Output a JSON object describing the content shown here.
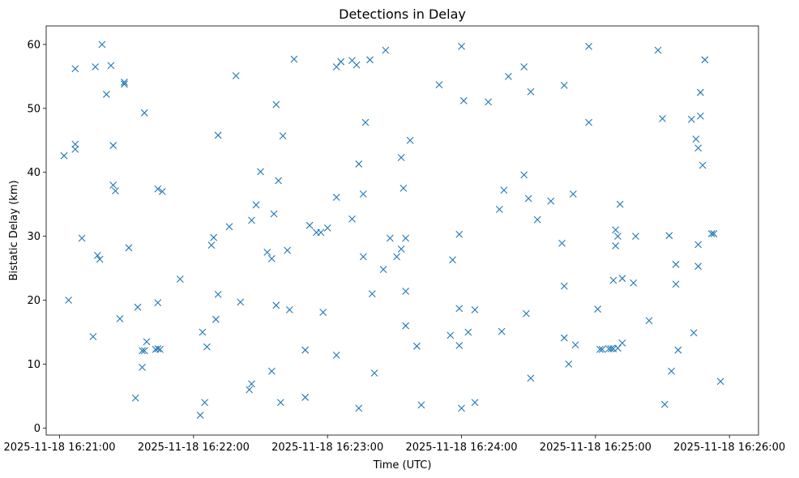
{
  "chart_data": {
    "type": "scatter",
    "title": "Detections in Delay",
    "xlabel": "Time (UTC)",
    "ylabel": "Bistatic Delay (km)",
    "marker": "x",
    "color": "#1f77b4",
    "grid": false,
    "xlim": [
      "2025-11-18 16:20:54",
      "2025-11-18 16:26:13"
    ],
    "ylim": [
      -1.1,
      62.9
    ],
    "x_ticks": [
      "2025-11-18 16:21:00",
      "2025-11-18 16:22:00",
      "2025-11-18 16:23:00",
      "2025-11-18 16:24:00",
      "2025-11-18 16:25:00",
      "2025-11-18 16:26:00"
    ],
    "y_ticks": [
      0,
      10,
      20,
      30,
      40,
      50,
      60
    ],
    "points": [
      {
        "x": "2025-11-18 16:21:02",
        "y": 42.6
      },
      {
        "x": "2025-11-18 16:21:04",
        "y": 20.0
      },
      {
        "x": "2025-11-18 16:21:07",
        "y": 56.2
      },
      {
        "x": "2025-11-18 16:21:07",
        "y": 44.4
      },
      {
        "x": "2025-11-18 16:21:07",
        "y": 43.6
      },
      {
        "x": "2025-11-18 16:21:10",
        "y": 29.7
      },
      {
        "x": "2025-11-18 16:21:15",
        "y": 14.3
      },
      {
        "x": "2025-11-18 16:21:16",
        "y": 56.5
      },
      {
        "x": "2025-11-18 16:21:17",
        "y": 27.0
      },
      {
        "x": "2025-11-18 16:21:18",
        "y": 26.4
      },
      {
        "x": "2025-11-18 16:21:19",
        "y": 60.0
      },
      {
        "x": "2025-11-18 16:21:21",
        "y": 52.2
      },
      {
        "x": "2025-11-18 16:21:23",
        "y": 56.7
      },
      {
        "x": "2025-11-18 16:21:24",
        "y": 44.2
      },
      {
        "x": "2025-11-18 16:21:24",
        "y": 38.0
      },
      {
        "x": "2025-11-18 16:21:25",
        "y": 37.1
      },
      {
        "x": "2025-11-18 16:21:27",
        "y": 17.1
      },
      {
        "x": "2025-11-18 16:21:29",
        "y": 54.1
      },
      {
        "x": "2025-11-18 16:21:29",
        "y": 53.8
      },
      {
        "x": "2025-11-18 16:21:31",
        "y": 28.2
      },
      {
        "x": "2025-11-18 16:21:34",
        "y": 4.7
      },
      {
        "x": "2025-11-18 16:21:35",
        "y": 18.9
      },
      {
        "x": "2025-11-18 16:21:37",
        "y": 9.5
      },
      {
        "x": "2025-11-18 16:21:37",
        "y": 12.1
      },
      {
        "x": "2025-11-18 16:21:38",
        "y": 49.3
      },
      {
        "x": "2025-11-18 16:21:38",
        "y": 12.1
      },
      {
        "x": "2025-11-18 16:21:39",
        "y": 13.5
      },
      {
        "x": "2025-11-18 16:21:43",
        "y": 12.3
      },
      {
        "x": "2025-11-18 16:21:44",
        "y": 19.6
      },
      {
        "x": "2025-11-18 16:21:44",
        "y": 37.4
      },
      {
        "x": "2025-11-18 16:21:44",
        "y": 12.4
      },
      {
        "x": "2025-11-18 16:21:45",
        "y": 12.3
      },
      {
        "x": "2025-11-18 16:21:46",
        "y": 37.0
      },
      {
        "x": "2025-11-18 16:21:54",
        "y": 23.3
      },
      {
        "x": "2025-11-18 16:22:03",
        "y": 2.0
      },
      {
        "x": "2025-11-18 16:22:04",
        "y": 15.0
      },
      {
        "x": "2025-11-18 16:22:05",
        "y": 4.0
      },
      {
        "x": "2025-11-18 16:22:06",
        "y": 12.7
      },
      {
        "x": "2025-11-18 16:22:08",
        "y": 28.6
      },
      {
        "x": "2025-11-18 16:22:09",
        "y": 29.8
      },
      {
        "x": "2025-11-18 16:22:10",
        "y": 17.0
      },
      {
        "x": "2025-11-18 16:22:11",
        "y": 20.9
      },
      {
        "x": "2025-11-18 16:22:11",
        "y": 45.8
      },
      {
        "x": "2025-11-18 16:22:16",
        "y": 31.5
      },
      {
        "x": "2025-11-18 16:22:19",
        "y": 55.1
      },
      {
        "x": "2025-11-18 16:22:21",
        "y": 19.7
      },
      {
        "x": "2025-11-18 16:22:25",
        "y": 6.0
      },
      {
        "x": "2025-11-18 16:22:26",
        "y": 6.9
      },
      {
        "x": "2025-11-18 16:22:26",
        "y": 32.5
      },
      {
        "x": "2025-11-18 16:22:28",
        "y": 34.9
      },
      {
        "x": "2025-11-18 16:22:30",
        "y": 40.1
      },
      {
        "x": "2025-11-18 16:22:33",
        "y": 27.5
      },
      {
        "x": "2025-11-18 16:22:35",
        "y": 26.5
      },
      {
        "x": "2025-11-18 16:22:35",
        "y": 8.9
      },
      {
        "x": "2025-11-18 16:22:36",
        "y": 33.5
      },
      {
        "x": "2025-11-18 16:22:37",
        "y": 19.2
      },
      {
        "x": "2025-11-18 16:22:37",
        "y": 50.6
      },
      {
        "x": "2025-11-18 16:22:38",
        "y": 38.7
      },
      {
        "x": "2025-11-18 16:22:39",
        "y": 4.0
      },
      {
        "x": "2025-11-18 16:22:40",
        "y": 45.7
      },
      {
        "x": "2025-11-18 16:22:42",
        "y": 27.8
      },
      {
        "x": "2025-11-18 16:22:43",
        "y": 18.5
      },
      {
        "x": "2025-11-18 16:22:45",
        "y": 57.7
      },
      {
        "x": "2025-11-18 16:22:50",
        "y": 12.2
      },
      {
        "x": "2025-11-18 16:22:50",
        "y": 4.8
      },
      {
        "x": "2025-11-18 16:22:52",
        "y": 31.7
      },
      {
        "x": "2025-11-18 16:22:55",
        "y": 30.6
      },
      {
        "x": "2025-11-18 16:22:57",
        "y": 30.6
      },
      {
        "x": "2025-11-18 16:22:58",
        "y": 18.1
      },
      {
        "x": "2025-11-18 16:23:00",
        "y": 31.3
      },
      {
        "x": "2025-11-18 16:23:04",
        "y": 56.5
      },
      {
        "x": "2025-11-18 16:23:04",
        "y": 36.1
      },
      {
        "x": "2025-11-18 16:23:04",
        "y": 11.4
      },
      {
        "x": "2025-11-18 16:23:06",
        "y": 57.3
      },
      {
        "x": "2025-11-18 16:23:11",
        "y": 57.5
      },
      {
        "x": "2025-11-18 16:23:11",
        "y": 32.7
      },
      {
        "x": "2025-11-18 16:23:13",
        "y": 56.8
      },
      {
        "x": "2025-11-18 16:23:14",
        "y": 41.3
      },
      {
        "x": "2025-11-18 16:23:14",
        "y": 3.1
      },
      {
        "x": "2025-11-18 16:23:16",
        "y": 36.6
      },
      {
        "x": "2025-11-18 16:23:16",
        "y": 26.8
      },
      {
        "x": "2025-11-18 16:23:17",
        "y": 47.8
      },
      {
        "x": "2025-11-18 16:23:19",
        "y": 57.6
      },
      {
        "x": "2025-11-18 16:23:20",
        "y": 21.0
      },
      {
        "x": "2025-11-18 16:23:21",
        "y": 8.6
      },
      {
        "x": "2025-11-18 16:23:25",
        "y": 24.8
      },
      {
        "x": "2025-11-18 16:23:26",
        "y": 59.1
      },
      {
        "x": "2025-11-18 16:23:28",
        "y": 29.7
      },
      {
        "x": "2025-11-18 16:23:31",
        "y": 26.8
      },
      {
        "x": "2025-11-18 16:23:33",
        "y": 28.0
      },
      {
        "x": "2025-11-18 16:23:33",
        "y": 42.3
      },
      {
        "x": "2025-11-18 16:23:34",
        "y": 37.5
      },
      {
        "x": "2025-11-18 16:23:35",
        "y": 21.4
      },
      {
        "x": "2025-11-18 16:23:35",
        "y": 29.7
      },
      {
        "x": "2025-11-18 16:23:35",
        "y": 16.0
      },
      {
        "x": "2025-11-18 16:23:37",
        "y": 45.0
      },
      {
        "x": "2025-11-18 16:23:40",
        "y": 12.8
      },
      {
        "x": "2025-11-18 16:23:42",
        "y": 3.6
      },
      {
        "x": "2025-11-18 16:23:50",
        "y": 53.7
      },
      {
        "x": "2025-11-18 16:23:55",
        "y": 14.5
      },
      {
        "x": "2025-11-18 16:23:56",
        "y": 26.3
      },
      {
        "x": "2025-11-18 16:23:59",
        "y": 12.9
      },
      {
        "x": "2025-11-18 16:23:59",
        "y": 18.7
      },
      {
        "x": "2025-11-18 16:23:59",
        "y": 30.3
      },
      {
        "x": "2025-11-18 16:24:00",
        "y": 59.7
      },
      {
        "x": "2025-11-18 16:24:00",
        "y": 3.1
      },
      {
        "x": "2025-11-18 16:24:01",
        "y": 51.2
      },
      {
        "x": "2025-11-18 16:24:03",
        "y": 15.0
      },
      {
        "x": "2025-11-18 16:24:06",
        "y": 18.5
      },
      {
        "x": "2025-11-18 16:24:06",
        "y": 4.0
      },
      {
        "x": "2025-11-18 16:24:12",
        "y": 51.0
      },
      {
        "x": "2025-11-18 16:24:17",
        "y": 34.2
      },
      {
        "x": "2025-11-18 16:24:18",
        "y": 15.1
      },
      {
        "x": "2025-11-18 16:24:19",
        "y": 37.2
      },
      {
        "x": "2025-11-18 16:24:21",
        "y": 55.0
      },
      {
        "x": "2025-11-18 16:24:28",
        "y": 56.5
      },
      {
        "x": "2025-11-18 16:24:28",
        "y": 39.6
      },
      {
        "x": "2025-11-18 16:24:29",
        "y": 17.9
      },
      {
        "x": "2025-11-18 16:24:30",
        "y": 35.9
      },
      {
        "x": "2025-11-18 16:24:31",
        "y": 52.6
      },
      {
        "x": "2025-11-18 16:24:31",
        "y": 7.8
      },
      {
        "x": "2025-11-18 16:24:34",
        "y": 32.6
      },
      {
        "x": "2025-11-18 16:24:40",
        "y": 35.5
      },
      {
        "x": "2025-11-18 16:24:45",
        "y": 28.9
      },
      {
        "x": "2025-11-18 16:24:46",
        "y": 53.6
      },
      {
        "x": "2025-11-18 16:24:46",
        "y": 22.2
      },
      {
        "x": "2025-11-18 16:24:46",
        "y": 14.1
      },
      {
        "x": "2025-11-18 16:24:48",
        "y": 10.0
      },
      {
        "x": "2025-11-18 16:24:50",
        "y": 36.6
      },
      {
        "x": "2025-11-18 16:24:51",
        "y": 13.0
      },
      {
        "x": "2025-11-18 16:24:57",
        "y": 59.7
      },
      {
        "x": "2025-11-18 16:24:57",
        "y": 47.8
      },
      {
        "x": "2025-11-18 16:25:01",
        "y": 18.6
      },
      {
        "x": "2025-11-18 16:25:02",
        "y": 12.3
      },
      {
        "x": "2025-11-18 16:25:03",
        "y": 12.3
      },
      {
        "x": "2025-11-18 16:25:06",
        "y": 12.4
      },
      {
        "x": "2025-11-18 16:25:07",
        "y": 12.4
      },
      {
        "x": "2025-11-18 16:25:08",
        "y": 12.4
      },
      {
        "x": "2025-11-18 16:25:08",
        "y": 23.1
      },
      {
        "x": "2025-11-18 16:25:09",
        "y": 31.0
      },
      {
        "x": "2025-11-18 16:25:09",
        "y": 28.5
      },
      {
        "x": "2025-11-18 16:25:10",
        "y": 30.0
      },
      {
        "x": "2025-11-18 16:25:10",
        "y": 12.5
      },
      {
        "x": "2025-11-18 16:25:11",
        "y": 35.0
      },
      {
        "x": "2025-11-18 16:25:12",
        "y": 13.3
      },
      {
        "x": "2025-11-18 16:25:12",
        "y": 23.4
      },
      {
        "x": "2025-11-18 16:25:17",
        "y": 22.7
      },
      {
        "x": "2025-11-18 16:25:18",
        "y": 30.0
      },
      {
        "x": "2025-11-18 16:25:24",
        "y": 16.8
      },
      {
        "x": "2025-11-18 16:25:28",
        "y": 59.1
      },
      {
        "x": "2025-11-18 16:25:30",
        "y": 48.4
      },
      {
        "x": "2025-11-18 16:25:31",
        "y": 3.7
      },
      {
        "x": "2025-11-18 16:25:33",
        "y": 30.1
      },
      {
        "x": "2025-11-18 16:25:34",
        "y": 8.9
      },
      {
        "x": "2025-11-18 16:25:36",
        "y": 25.6
      },
      {
        "x": "2025-11-18 16:25:36",
        "y": 22.5
      },
      {
        "x": "2025-11-18 16:25:37",
        "y": 12.2
      },
      {
        "x": "2025-11-18 16:25:43",
        "y": 48.3
      },
      {
        "x": "2025-11-18 16:25:44",
        "y": 14.9
      },
      {
        "x": "2025-11-18 16:25:45",
        "y": 45.2
      },
      {
        "x": "2025-11-18 16:25:46",
        "y": 43.8
      },
      {
        "x": "2025-11-18 16:25:46",
        "y": 28.7
      },
      {
        "x": "2025-11-18 16:25:46",
        "y": 25.3
      },
      {
        "x": "2025-11-18 16:25:47",
        "y": 52.5
      },
      {
        "x": "2025-11-18 16:25:47",
        "y": 48.8
      },
      {
        "x": "2025-11-18 16:25:48",
        "y": 41.1
      },
      {
        "x": "2025-11-18 16:25:49",
        "y": 57.6
      },
      {
        "x": "2025-11-18 16:25:52",
        "y": 30.4
      },
      {
        "x": "2025-11-18 16:25:53",
        "y": 30.4
      },
      {
        "x": "2025-11-18 16:25:56",
        "y": 7.3
      }
    ]
  }
}
